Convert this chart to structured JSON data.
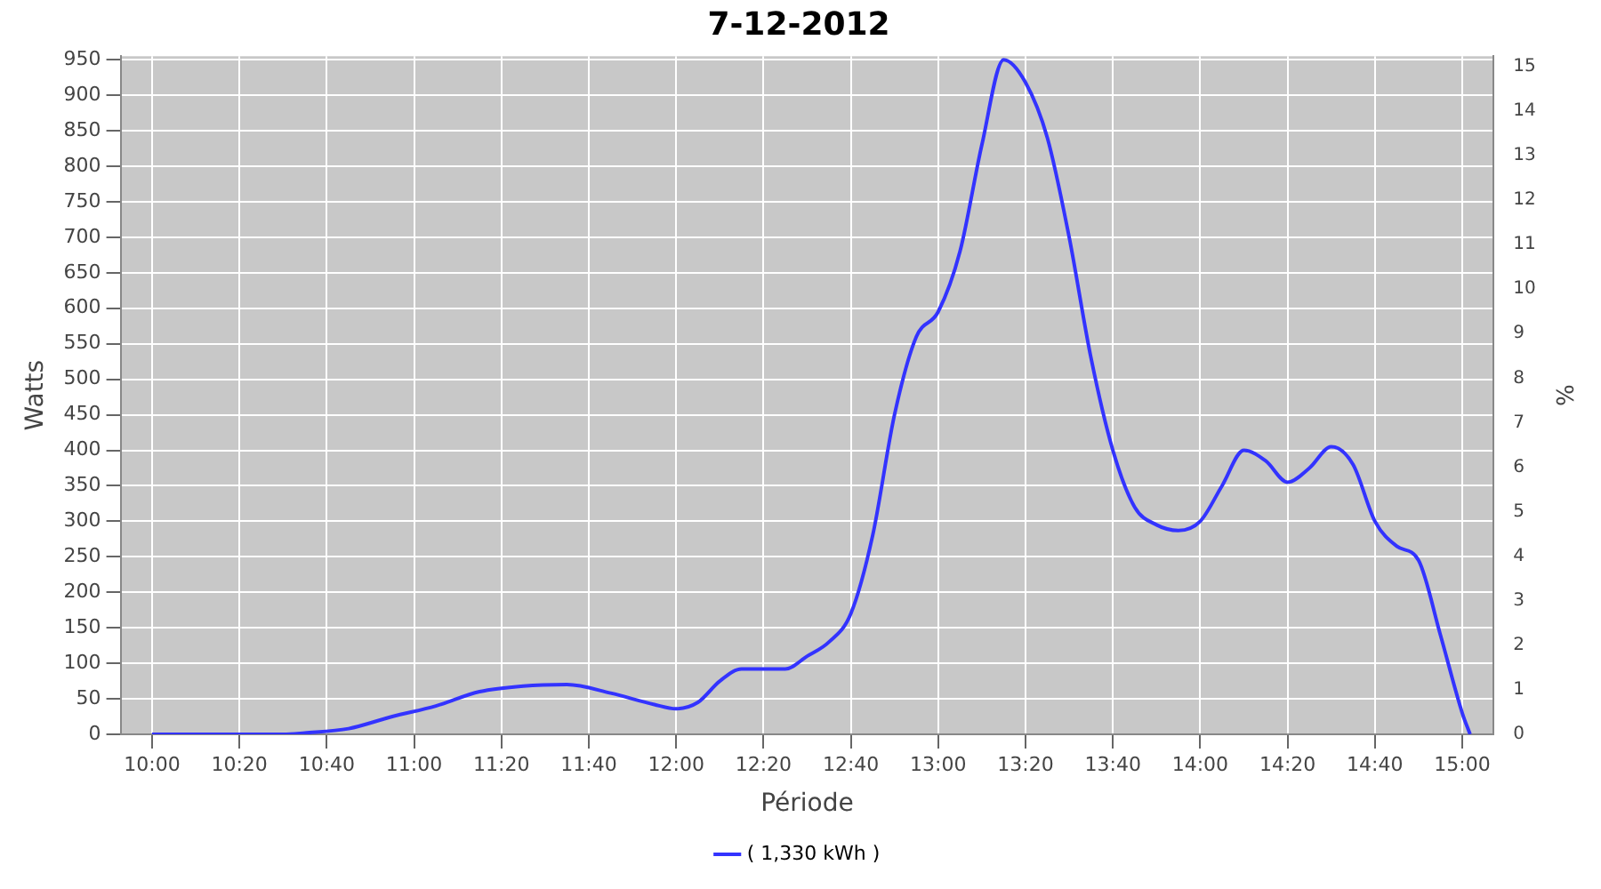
{
  "chart_data": {
    "type": "line",
    "title": "7-12-2012",
    "xlabel": "Période",
    "ylabel": "Watts",
    "y2label": "%",
    "x": [
      10,
      10.5,
      10.5833,
      10.75,
      10.9167,
      11.0833,
      11.25,
      11.4167,
      11.5833,
      11.75,
      11.9167,
      12,
      12.0833,
      12.1667,
      12.25,
      12.3333,
      12.4167,
      12.5,
      12.5833,
      12.6667,
      12.75,
      12.8333,
      12.9167,
      13,
      13.0833,
      13.1667,
      13.25,
      13.3333,
      13.4167,
      13.5,
      13.5833,
      13.6667,
      13.75,
      13.8333,
      13.9167,
      14,
      14.0833,
      14.1667,
      14.25,
      14.3333,
      14.4167,
      14.5,
      14.5833,
      14.6667,
      14.75,
      14.8333,
      14.9167,
      15,
      15.03
    ],
    "series": [
      {
        "name": "( 1,330 kWh )",
        "color": "#3333ff",
        "values": [
          0,
          0,
          2,
          8,
          25,
          40,
          60,
          68,
          70,
          58,
          42,
          36,
          45,
          75,
          92,
          92,
          92,
          110,
          130,
          170,
          280,
          450,
          560,
          595,
          680,
          830,
          950,
          918,
          840,
          700,
          530,
          400,
          320,
          295,
          287,
          300,
          350,
          400,
          385,
          355,
          375,
          405,
          380,
          300,
          265,
          245,
          140,
          30,
          0
        ]
      }
    ],
    "xlim": [
      9.88,
      15.12
    ],
    "xticks": [
      {
        "value": 10,
        "label": "10:00"
      },
      {
        "value": 10.3333,
        "label": "10:20"
      },
      {
        "value": 10.6667,
        "label": "10:40"
      },
      {
        "value": 11,
        "label": "11:00"
      },
      {
        "value": 11.3333,
        "label": "11:20"
      },
      {
        "value": 11.6667,
        "label": "11:40"
      },
      {
        "value": 12,
        "label": "12:00"
      },
      {
        "value": 12.3333,
        "label": "12:20"
      },
      {
        "value": 12.6667,
        "label": "12:40"
      },
      {
        "value": 13,
        "label": "13:00"
      },
      {
        "value": 13.3333,
        "label": "13:20"
      },
      {
        "value": 13.6667,
        "label": "13:40"
      },
      {
        "value": 14,
        "label": "14:00"
      },
      {
        "value": 14.3333,
        "label": "14:20"
      },
      {
        "value": 14.6667,
        "label": "14:40"
      },
      {
        "value": 15,
        "label": "15:00"
      }
    ],
    "ylim": [
      0,
      955
    ],
    "yticks": [
      0,
      50,
      100,
      150,
      200,
      250,
      300,
      350,
      400,
      450,
      500,
      550,
      600,
      650,
      700,
      750,
      800,
      850,
      900,
      950
    ],
    "y2lim": [
      0,
      15.23
    ],
    "y2ticks": [
      0,
      1,
      2,
      3,
      4,
      5,
      6,
      7,
      8,
      9,
      10,
      11,
      12,
      13,
      14,
      15
    ],
    "grid": true,
    "legend": "bottom",
    "marker": "none",
    "line_style": "solid"
  }
}
